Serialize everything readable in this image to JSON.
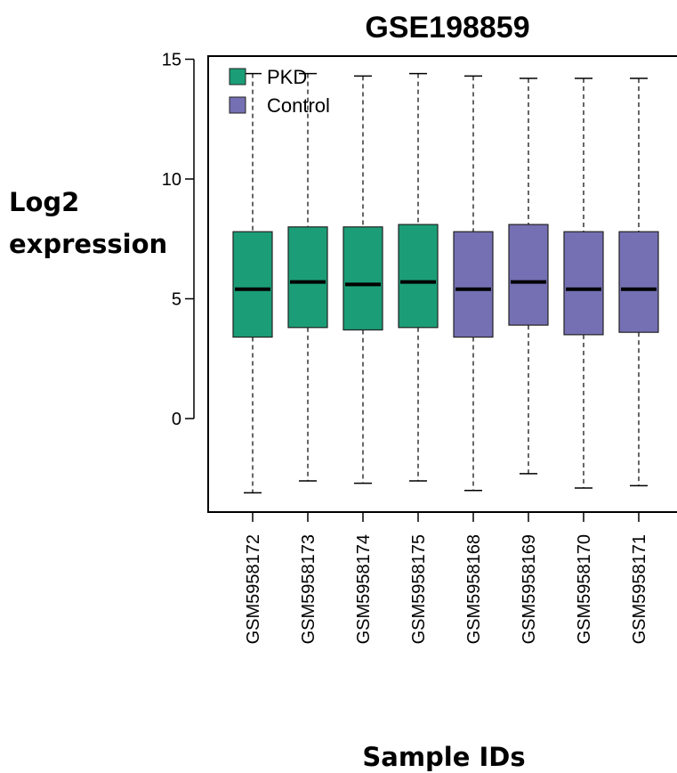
{
  "chart_data": {
    "type": "boxplot",
    "title": "GSE198859",
    "ylabel_line1": "Log2",
    "ylabel_line2": "expression",
    "xlabel": "Sample IDs",
    "ylim": [
      -3.8,
      15.2
    ],
    "yticks": [
      0,
      5,
      10,
      15
    ],
    "legend": {
      "position": "top-left",
      "entries": [
        {
          "name": "PKD",
          "color": "#1b9e77"
        },
        {
          "name": "Control",
          "color": "#7570b3"
        }
      ]
    },
    "samples": [
      {
        "id": "GSM5958172",
        "group": "PKD",
        "min": -3.1,
        "q1": 3.4,
        "median": 5.4,
        "q3": 7.8,
        "max": 14.4
      },
      {
        "id": "GSM5958173",
        "group": "PKD",
        "min": -2.6,
        "q1": 3.8,
        "median": 5.7,
        "q3": 8.0,
        "max": 14.4
      },
      {
        "id": "GSM5958174",
        "group": "PKD",
        "min": -2.7,
        "q1": 3.7,
        "median": 5.6,
        "q3": 8.0,
        "max": 14.3
      },
      {
        "id": "GSM5958175",
        "group": "PKD",
        "min": -2.6,
        "q1": 3.8,
        "median": 5.7,
        "q3": 8.1,
        "max": 14.4
      },
      {
        "id": "GSM5958168",
        "group": "Control",
        "min": -3.0,
        "q1": 3.4,
        "median": 5.4,
        "q3": 7.8,
        "max": 14.3
      },
      {
        "id": "GSM5958169",
        "group": "Control",
        "min": -2.3,
        "q1": 3.9,
        "median": 5.7,
        "q3": 8.1,
        "max": 14.2
      },
      {
        "id": "GSM5958170",
        "group": "Control",
        "min": -2.9,
        "q1": 3.5,
        "median": 5.4,
        "q3": 7.8,
        "max": 14.2
      },
      {
        "id": "GSM5958171",
        "group": "Control",
        "min": -2.8,
        "q1": 3.6,
        "median": 5.4,
        "q3": 7.8,
        "max": 14.2
      }
    ]
  }
}
